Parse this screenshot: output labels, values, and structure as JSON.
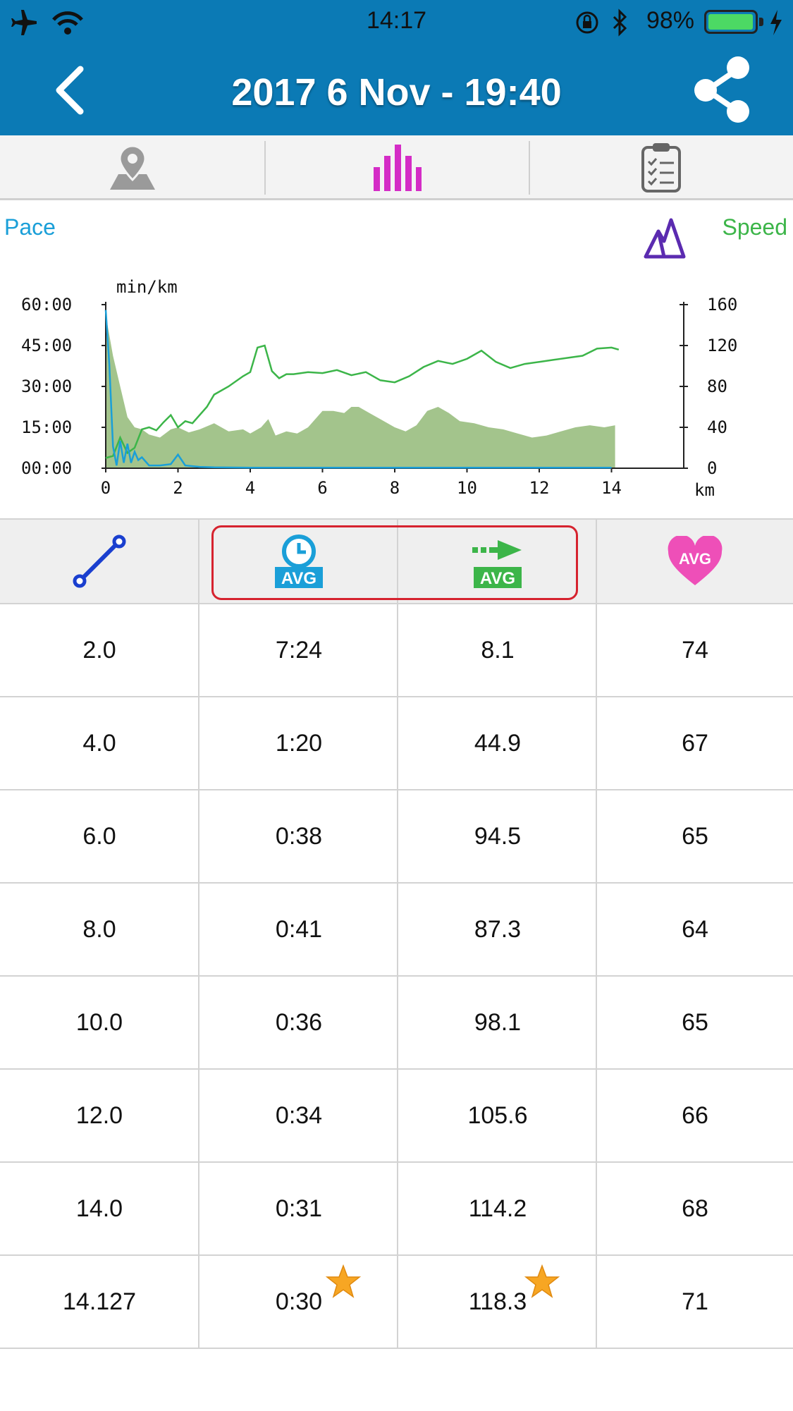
{
  "status_bar": {
    "time": "14:17",
    "battery": "98%",
    "battery_level": 0.98,
    "icons": [
      "airplane-icon",
      "wifi-icon",
      "orientation-lock-icon",
      "bluetooth-icon",
      "battery-icon",
      "charging-icon"
    ]
  },
  "nav": {
    "title": "2017 6 Nov - 19:40",
    "back_icon": "chevron-left-icon",
    "share_icon": "share-icon",
    "bar_color": "#0b7ab5"
  },
  "tabs": [
    {
      "icon": "map-pin-icon",
      "active": false
    },
    {
      "icon": "bar-chart-icon",
      "active": true
    },
    {
      "icon": "clipboard-checklist-icon",
      "active": false
    }
  ],
  "chart_header": {
    "left_label": "Pace",
    "right_label": "Speed",
    "toggle_icon": "mountain-icon"
  },
  "chart_data": {
    "type": "line",
    "left_unit": "min/km",
    "x_unit": "km",
    "x_ticks": [
      "0",
      "2",
      "4",
      "6",
      "8",
      "10",
      "12",
      "14"
    ],
    "xlim": [
      0,
      16
    ],
    "y_left_ticks": [
      "60:00",
      "45:00",
      "30:00",
      "15:00",
      "00:00"
    ],
    "y_left_range_min": [
      0,
      60
    ],
    "y_right_ticks": [
      "160",
      "120",
      "80",
      "40",
      "0"
    ],
    "y_right_range": [
      0,
      160
    ],
    "series": [
      {
        "kind": "pace",
        "axis": "left",
        "color": "#1a9fd8",
        "x": [
          0,
          0.1,
          0.2,
          0.3,
          0.4,
          0.5,
          0.6,
          0.7,
          0.8,
          0.9,
          1.0,
          1.2,
          1.5,
          1.8,
          2.0,
          2.2,
          2.6,
          3.0,
          4.0,
          14.0
        ],
        "y": [
          58,
          38,
          8,
          1,
          10,
          2,
          9,
          2,
          6,
          3,
          4,
          1,
          1,
          1.5,
          5,
          1,
          0.5,
          0.3,
          0.2,
          0.2
        ]
      },
      {
        "kind": "speed",
        "axis": "right",
        "color": "#3cb549",
        "x": [
          0,
          0.2,
          0.4,
          0.6,
          0.8,
          1.0,
          1.2,
          1.4,
          1.6,
          1.8,
          2.0,
          2.2,
          2.4,
          2.8,
          3.0,
          3.4,
          3.8,
          4.0,
          4.2,
          4.4,
          4.6,
          4.8,
          5.0,
          5.2,
          5.6,
          6.0,
          6.4,
          6.8,
          7.2,
          7.6,
          8.0,
          8.4,
          8.8,
          9.2,
          9.6,
          10.0,
          10.4,
          10.8,
          11.2,
          11.6,
          12.0,
          12.4,
          12.8,
          13.2,
          13.6,
          14.0,
          14.2
        ],
        "y": [
          10,
          12,
          30,
          15,
          20,
          38,
          40,
          37,
          45,
          52,
          40,
          46,
          44,
          60,
          72,
          80,
          90,
          94,
          118,
          120,
          95,
          88,
          92,
          92,
          94,
          93,
          96,
          91,
          94,
          86,
          84,
          90,
          99,
          105,
          102,
          107,
          115,
          104,
          98,
          102,
          104,
          106,
          108,
          110,
          117,
          118,
          116
        ]
      },
      {
        "kind": "elevation",
        "axis": "right",
        "color": "#a3c48c",
        "x": [
          0,
          0.2,
          0.4,
          0.6,
          0.8,
          1.0,
          1.2,
          1.5,
          1.8,
          2.0,
          2.3,
          2.6,
          3.0,
          3.4,
          3.8,
          4.0,
          4.3,
          4.5,
          4.7,
          5.0,
          5.3,
          5.6,
          6.0,
          6.3,
          6.6,
          6.8,
          7.0,
          7.3,
          7.6,
          8.0,
          8.3,
          8.6,
          8.9,
          9.2,
          9.5,
          9.8,
          10.2,
          10.6,
          11.0,
          11.4,
          11.8,
          12.2,
          12.6,
          13.0,
          13.4,
          13.8,
          14.1
        ],
        "y": [
          150,
          110,
          80,
          50,
          40,
          38,
          33,
          30,
          38,
          40,
          35,
          38,
          44,
          36,
          38,
          34,
          40,
          48,
          32,
          36,
          34,
          40,
          56,
          56,
          54,
          60,
          60,
          54,
          48,
          40,
          36,
          42,
          56,
          60,
          54,
          46,
          44,
          40,
          38,
          34,
          30,
          32,
          36,
          40,
          42,
          40,
          42
        ]
      }
    ]
  },
  "table": {
    "header_icons": [
      "distance-line-icon",
      "avg-time-icon",
      "avg-speed-icon",
      "avg-heart-rate-icon"
    ],
    "header_badge": "AVG",
    "rows": [
      {
        "distance": "2.0",
        "time": "7:24",
        "speed": "8.1",
        "hr": "74"
      },
      {
        "distance": "4.0",
        "time": "1:20",
        "speed": "44.9",
        "hr": "67"
      },
      {
        "distance": "6.0",
        "time": "0:38",
        "speed": "94.5",
        "hr": "65"
      },
      {
        "distance": "8.0",
        "time": "0:41",
        "speed": "87.3",
        "hr": "64"
      },
      {
        "distance": "10.0",
        "time": "0:36",
        "speed": "98.1",
        "hr": "65"
      },
      {
        "distance": "12.0",
        "time": "0:34",
        "speed": "105.6",
        "hr": "66"
      },
      {
        "distance": "14.0",
        "time": "0:31",
        "speed": "114.2",
        "hr": "68"
      },
      {
        "distance": "14.127",
        "time": "0:30",
        "speed": "118.3",
        "hr": "71",
        "best": true
      }
    ]
  },
  "colors": {
    "highlight_border": "#d6232f",
    "active_tab": "#d42cc6",
    "pace": "#1a9fd8",
    "speed": "#3cb549",
    "heart": "#ee4fb8"
  }
}
